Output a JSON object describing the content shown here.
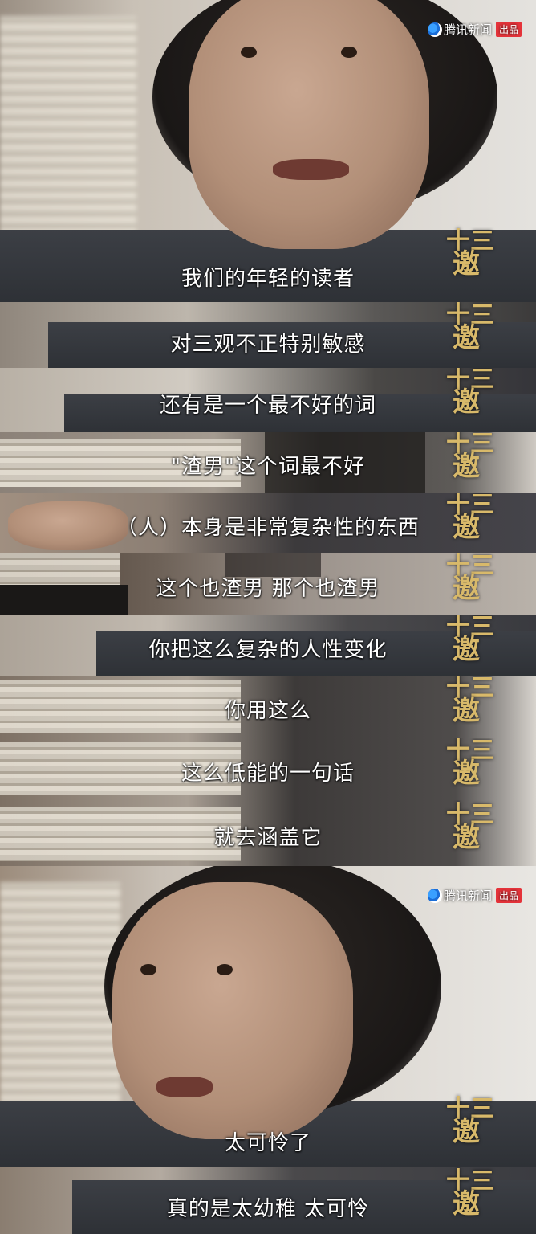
{
  "watermark": {
    "brand": "腾讯新闻",
    "badge": "出品"
  },
  "show_seal": {
    "line1": "十三",
    "line2": "邀"
  },
  "colors": {
    "caption": "#ffffff",
    "seal": "#d8b96a",
    "badge": "#e5333a"
  },
  "frames": [
    {
      "caption": "我们的年轻的读者"
    },
    {
      "caption": "对三观不正特别敏感"
    },
    {
      "caption": "还有是一个最不好的词"
    },
    {
      "caption": "\"渣男\"这个词最不好"
    },
    {
      "caption": "（人）本身是非常复杂性的东西"
    },
    {
      "caption": "这个也渣男 那个也渣男"
    },
    {
      "caption": "你把这么复杂的人性变化"
    },
    {
      "caption": "你用这么"
    },
    {
      "caption": "这么低能的一句话"
    },
    {
      "caption": "就去涵盖它"
    },
    {
      "caption": "太可怜了"
    },
    {
      "caption": "真的是太幼稚 太可怜"
    }
  ]
}
